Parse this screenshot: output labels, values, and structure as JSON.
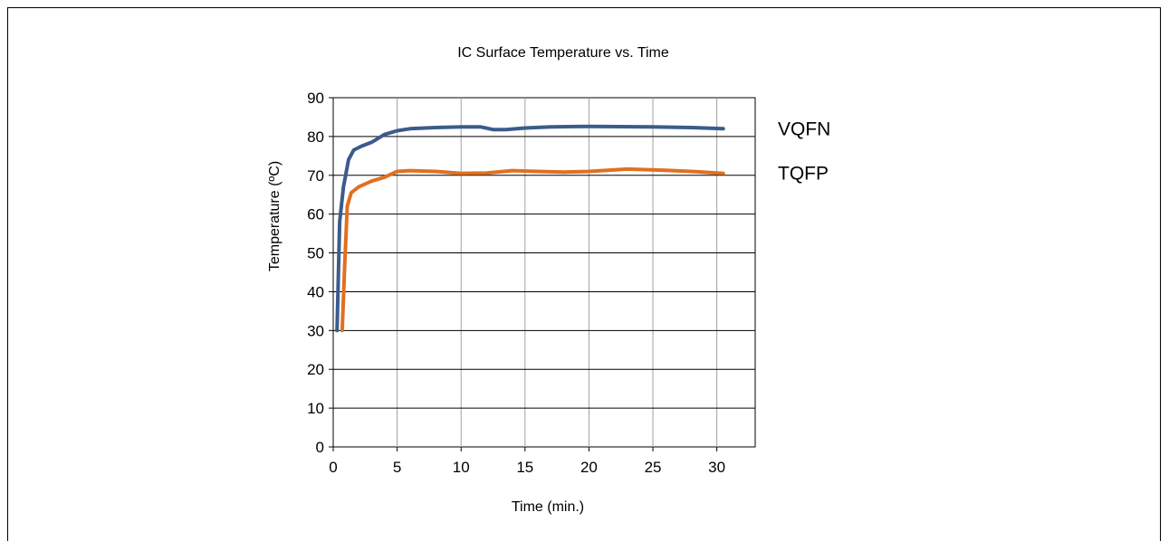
{
  "chart_data": {
    "type": "line",
    "title": "IC Surface Temperature  vs. Time",
    "xlabel": "Time  (min.)",
    "ylabel": "Temperature   (ºC)",
    "xlim": [
      0,
      33
    ],
    "ylim": [
      0,
      90
    ],
    "x_ticks": [
      0,
      5,
      10,
      15,
      20,
      25,
      30
    ],
    "y_ticks": [
      0,
      10,
      20,
      30,
      40,
      50,
      60,
      70,
      80,
      90
    ],
    "grid": true,
    "legend_placement": "right (labels beside line ends)",
    "series": [
      {
        "name": "VQFN",
        "color": "#3b5b8c",
        "points": [
          [
            0.3,
            30
          ],
          [
            0.5,
            58
          ],
          [
            0.8,
            67
          ],
          [
            1.2,
            74
          ],
          [
            1.6,
            76.5
          ],
          [
            2.2,
            77.5
          ],
          [
            3,
            78.5
          ],
          [
            4,
            80.5
          ],
          [
            5,
            81.5
          ],
          [
            6,
            82
          ],
          [
            8,
            82.3
          ],
          [
            10,
            82.5
          ],
          [
            11.5,
            82.5
          ],
          [
            12.5,
            81.8
          ],
          [
            13.5,
            81.8
          ],
          [
            15,
            82.2
          ],
          [
            17,
            82.5
          ],
          [
            20,
            82.6
          ],
          [
            25,
            82.5
          ],
          [
            28,
            82.3
          ],
          [
            30.5,
            82
          ]
        ]
      },
      {
        "name": "TQFP",
        "color": "#e07020",
        "points": [
          [
            0.7,
            30
          ],
          [
            0.9,
            47
          ],
          [
            1.1,
            62
          ],
          [
            1.4,
            65.5
          ],
          [
            2,
            67
          ],
          [
            3,
            68.5
          ],
          [
            4,
            69.5
          ],
          [
            5,
            71
          ],
          [
            6,
            71.2
          ],
          [
            8,
            71
          ],
          [
            10,
            70.5
          ],
          [
            12,
            70.6
          ],
          [
            14,
            71.2
          ],
          [
            16,
            71
          ],
          [
            18,
            70.8
          ],
          [
            20,
            71
          ],
          [
            23,
            71.6
          ],
          [
            26,
            71.3
          ],
          [
            28,
            71
          ],
          [
            30.5,
            70.5
          ]
        ]
      }
    ]
  }
}
